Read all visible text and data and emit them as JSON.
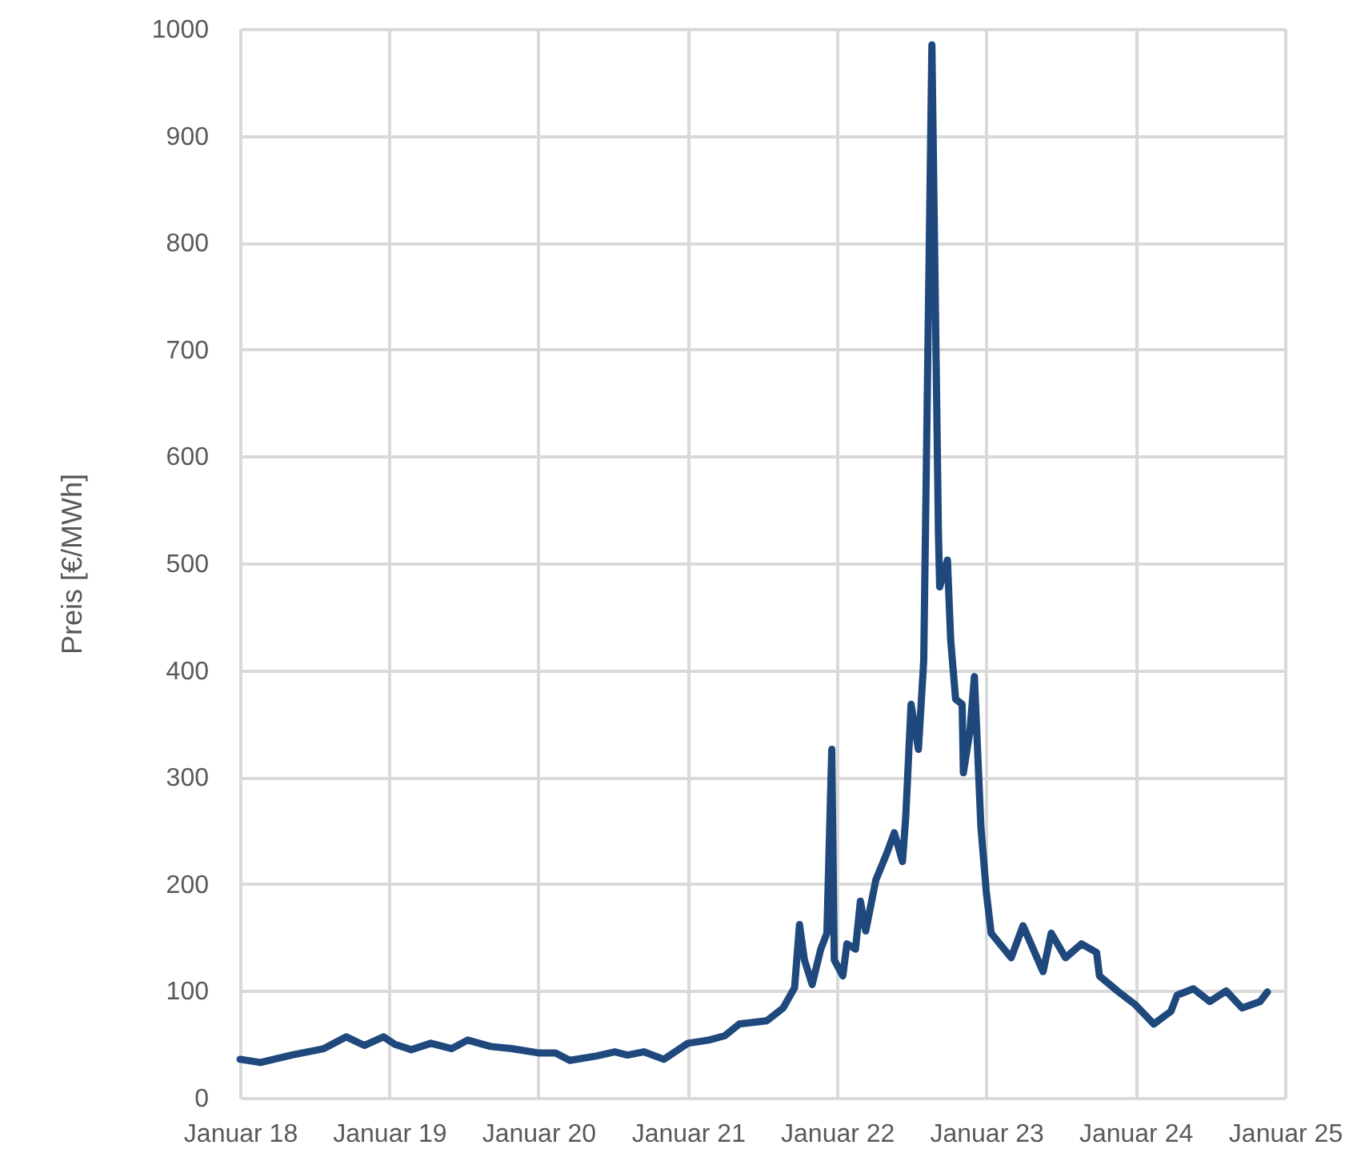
{
  "chart_data": {
    "type": "line",
    "ylabel": "Preis [€/MWh]",
    "x": [
      "2018-01-01",
      "2018-02-20",
      "2018-05-07",
      "2018-07-25",
      "2018-09-18",
      "2018-11-01",
      "2018-12-18",
      "2019-01-15",
      "2019-02-24",
      "2019-04-13",
      "2019-06-03",
      "2019-07-12",
      "2019-09-06",
      "2019-10-27",
      "2020-01-01",
      "2020-02-12",
      "2020-03-18",
      "2020-05-21",
      "2020-07-06",
      "2020-08-06",
      "2020-09-15",
      "2020-11-03",
      "2021-01-01",
      "2021-02-21",
      "2021-04-01",
      "2021-05-07",
      "2021-07-13",
      "2021-08-22",
      "2021-09-19",
      "2021-10-01",
      "2021-10-13",
      "2021-11-01",
      "2021-11-22",
      "2021-12-07",
      "2021-12-19",
      "2021-12-25",
      "2022-01-15",
      "2022-01-25",
      "2022-02-15",
      "2022-02-27",
      "2022-03-12",
      "2022-04-06",
      "2022-05-03",
      "2022-05-21",
      "2022-06-10",
      "2022-06-18",
      "2022-07-01",
      "2022-07-19",
      "2022-08-01",
      "2022-08-09",
      "2022-08-21",
      "2022-09-06",
      "2022-09-09",
      "2022-09-28",
      "2022-10-06",
      "2022-10-18",
      "2022-11-03",
      "2022-11-06",
      "2022-11-22",
      "2022-12-03",
      "2022-12-19",
      "2023-01-01",
      "2023-01-13",
      "2023-03-03",
      "2023-04-01",
      "2023-05-20",
      "2023-06-09",
      "2023-07-14",
      "2023-08-22",
      "2023-09-28",
      "2023-10-05",
      "2023-11-21",
      "2024-01-01",
      "2024-02-15",
      "2024-03-28",
      "2024-04-12",
      "2024-05-22",
      "2024-07-01",
      "2024-08-10",
      "2024-09-18",
      "2024-11-01",
      "2024-11-19"
    ],
    "series": [
      {
        "color": "#1f497d",
        "values": [
          36,
          33,
          40,
          46,
          57,
          49,
          57,
          50,
          45,
          51,
          46,
          54,
          48,
          46,
          42,
          42,
          35,
          39,
          43,
          40,
          43,
          36,
          51,
          54,
          58,
          69,
          72,
          84,
          103,
          162,
          129,
          106,
          139,
          154,
          326,
          129,
          114,
          144,
          139,
          184,
          156,
          204,
          229,
          248,
          221,
          263,
          368,
          326,
          409,
          636,
          985,
          528,
          478,
          503,
          428,
          373,
          368,
          304,
          343,
          394,
          253,
          193,
          154,
          131,
          161,
          118,
          154,
          131,
          144,
          136,
          114,
          99,
          87,
          69,
          81,
          96,
          102,
          90,
          100,
          84,
          90,
          99
        ]
      }
    ],
    "xlim": [
      "2018-01-01",
      "2025-01-01"
    ],
    "xticks": [
      {
        "value": "2018-01-01",
        "label": "Januar 18"
      },
      {
        "value": "2019-01-01",
        "label": "Januar 19"
      },
      {
        "value": "2020-01-01",
        "label": "Januar 20"
      },
      {
        "value": "2021-01-01",
        "label": "Januar 21"
      },
      {
        "value": "2022-01-01",
        "label": "Januar 22"
      },
      {
        "value": "2023-01-01",
        "label": "Januar 23"
      },
      {
        "value": "2024-01-01",
        "label": "Januar 24"
      },
      {
        "value": "2025-01-01",
        "label": "Januar 25"
      }
    ],
    "ylim": [
      0,
      1000
    ],
    "yticks": [
      0,
      100,
      200,
      300,
      400,
      500,
      600,
      700,
      800,
      900,
      1000
    ],
    "grid": true,
    "line_style": "solid"
  }
}
